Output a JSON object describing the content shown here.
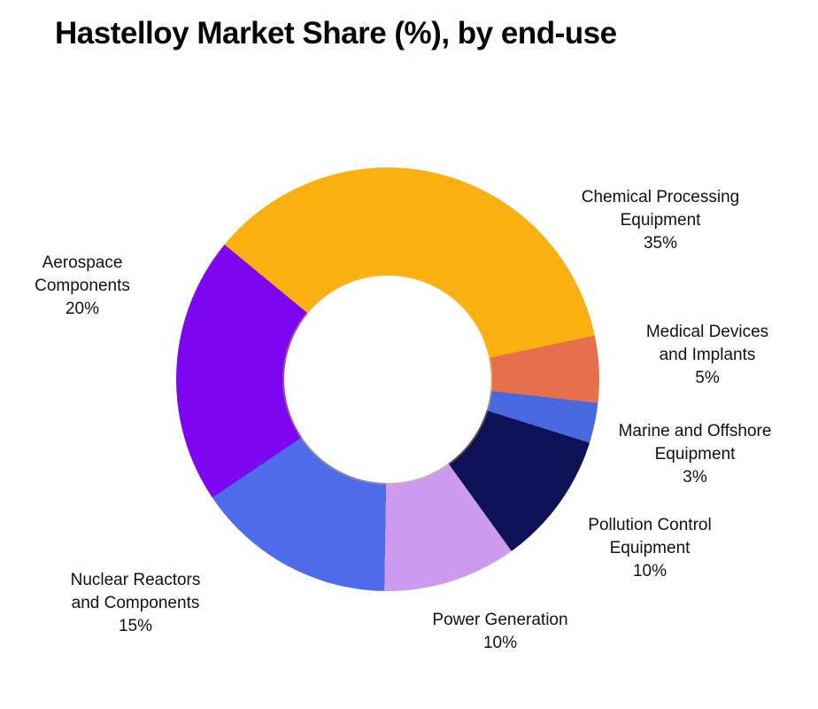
{
  "page": {
    "background_color": "#FFFFFF"
  },
  "chart_data": {
    "type": "pie",
    "donut": true,
    "hole_ratio": 0.49,
    "start_angle_deg": -50.5,
    "direction": "clockwise",
    "title": "Hastelloy Market Share (%), by end-use",
    "values_unit": "%",
    "legend": "none - direct outside labels",
    "segments": [
      {
        "label": "Chemical Processing Equipment",
        "value": 35,
        "color": "#FBB011",
        "callout_text": "Chemical Processing\nEquipment\n35%"
      },
      {
        "label": "Medical Devices and Implants",
        "value": 5,
        "color": "#E7704C",
        "callout_text": "Medical Devices\nand Implants\n5%"
      },
      {
        "label": "Marine and Offshore Equipment",
        "value": 3,
        "color": "#4768DE",
        "callout_text": "Marine and Offshore\nEquipment\n3%"
      },
      {
        "label": "Pollution Control Equipment",
        "value": 10,
        "color": "#0D1155",
        "callout_text": "Pollution Control\nEquipment\n10%"
      },
      {
        "label": "Power Generation",
        "value": 10,
        "color": "#CC9BEF",
        "callout_text": "Power Generation\n10%"
      },
      {
        "label": "Nuclear Reactors and Components",
        "value": 15,
        "color": "#4E6CE9",
        "callout_text": "Nuclear Reactors\nand Components\n15%"
      },
      {
        "label": "Aerospace Components",
        "value": 20,
        "color": "#7D05F2",
        "callout_text": "Aerospace\nComponents\n20%"
      }
    ]
  }
}
